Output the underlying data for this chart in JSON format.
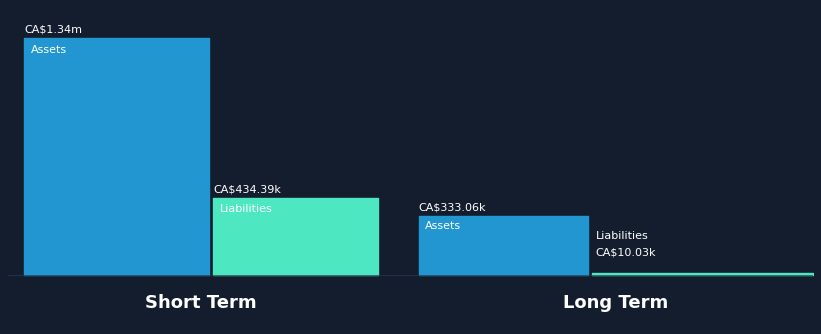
{
  "background_color": "#131d2e",
  "short_term": {
    "assets_value": 1340,
    "assets_label": "Assets",
    "assets_value_label": "CA$1.34m",
    "assets_color": "#2196d0",
    "liabilities_value": 434.39,
    "liabilities_label": "Liabilities",
    "liabilities_value_label": "CA$434.39k",
    "liabilities_color": "#4de8c2"
  },
  "long_term": {
    "assets_value": 333.06,
    "assets_label": "Assets",
    "assets_value_label": "CA$333.06k",
    "assets_color": "#2196d0",
    "liabilities_value": 10.03,
    "liabilities_label": "Liabilities",
    "liabilities_value_label": "CA$10.03k",
    "liabilities_color": "#4de8c2"
  },
  "section_labels": [
    "Short Term",
    "Long Term"
  ],
  "text_color": "#ffffff",
  "label_fontsize": 8,
  "section_fontsize": 13,
  "value_fontsize": 8
}
